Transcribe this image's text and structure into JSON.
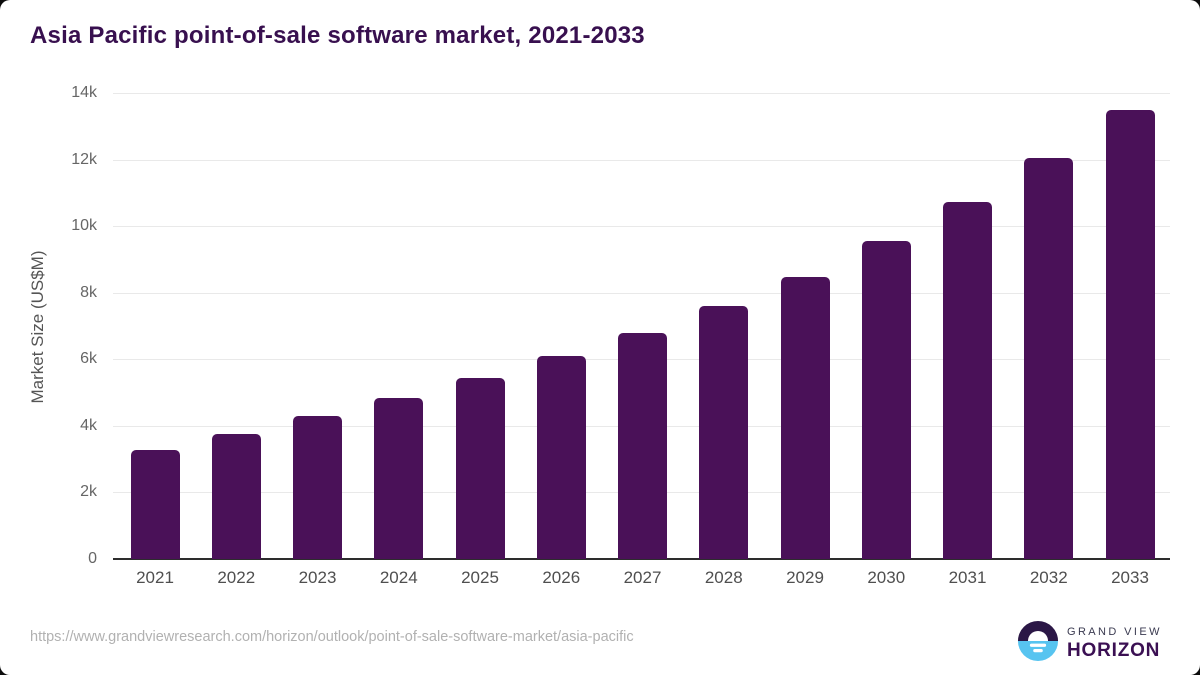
{
  "title": "Asia Pacific point-of-sale software market, 2021-2033",
  "chart_data": {
    "type": "bar",
    "title": "Asia Pacific point-of-sale software market, 2021-2033",
    "categories": [
      "2021",
      "2022",
      "2023",
      "2024",
      "2025",
      "2026",
      "2027",
      "2028",
      "2029",
      "2030",
      "2031",
      "2032",
      "2033"
    ],
    "values": [
      3270,
      3760,
      4290,
      4830,
      5430,
      6100,
      6800,
      7610,
      8480,
      9540,
      10740,
      12050,
      13480
    ],
    "xlabel": "",
    "ylabel": "Market Size (US$M)",
    "ylim": [
      0,
      14000
    ],
    "y_ticks": [
      {
        "label": "0",
        "value": 0
      },
      {
        "label": "2k",
        "value": 2000
      },
      {
        "label": "4k",
        "value": 4000
      },
      {
        "label": "6k",
        "value": 6000
      },
      {
        "label": "8k",
        "value": 8000
      },
      {
        "label": "10k",
        "value": 10000
      },
      {
        "label": "12k",
        "value": 12000
      },
      {
        "label": "14k",
        "value": 14000
      }
    ],
    "grid": true,
    "legend": false,
    "bar_color": "#4a1158",
    "gridline_color": "#e9e9e9",
    "axis_color": "#2d2d2d",
    "title_color": "#38104f"
  },
  "footer": {
    "source_url": "https://www.grandviewresearch.com/horizon/outlook/point-of-sale-software-market/asia-pacific",
    "logo": {
      "top_text": "GRAND VIEW",
      "bottom_text": "HORIZON",
      "icon": "sun-over-water-horizon-icon",
      "icon_top_color": "#2b1746",
      "icon_bottom_color": "#57c4f0"
    }
  }
}
